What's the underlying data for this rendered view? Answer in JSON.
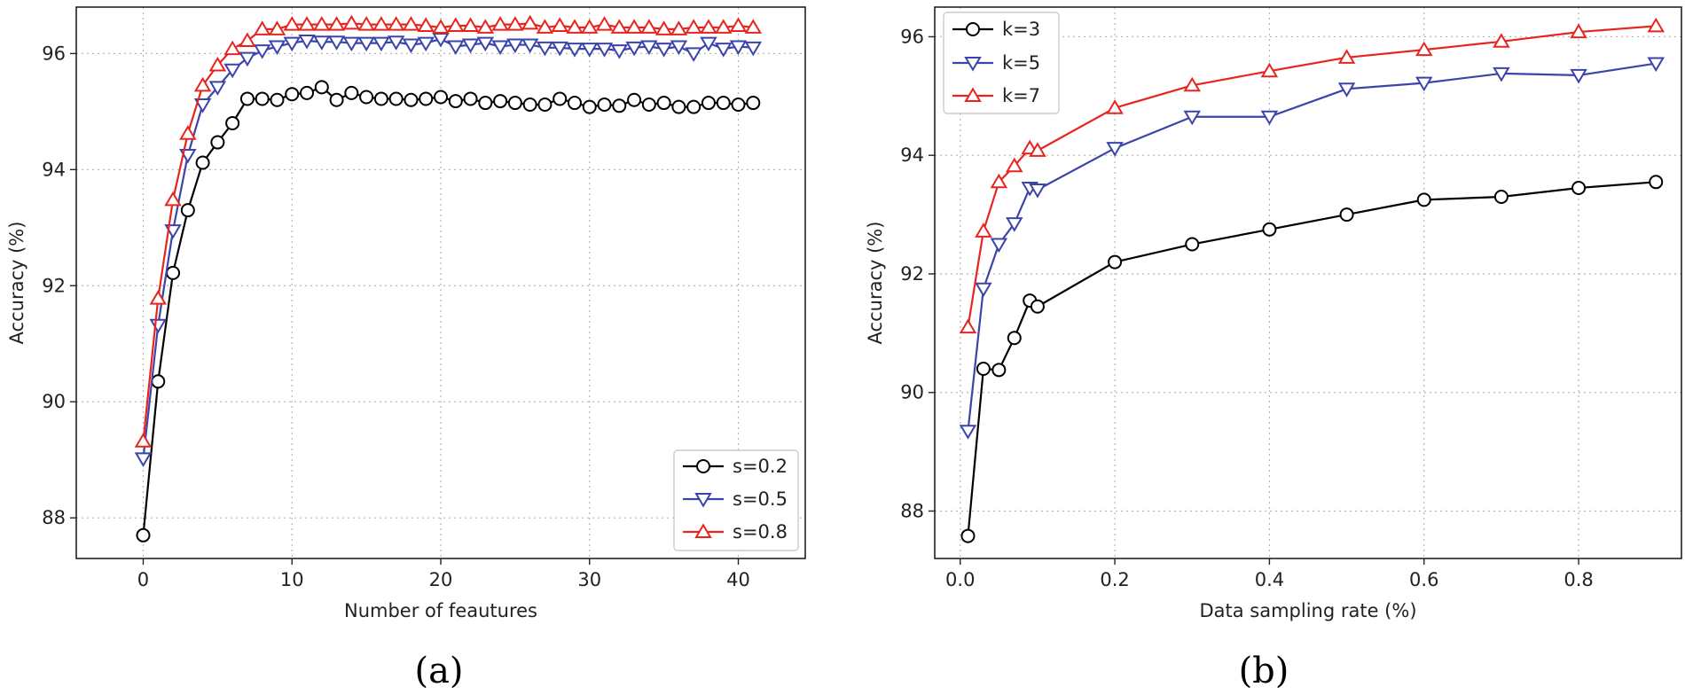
{
  "figure_labels": [
    "(a)",
    "(b)"
  ],
  "chart_data": [
    {
      "type": "line",
      "id": "a",
      "caption": "(a)",
      "xlabel": "Number of feautures",
      "ylabel": "Accuracy (%)",
      "xlim": [
        -4.5,
        44.5
      ],
      "ylim": [
        87.3,
        96.8
      ],
      "xticks": [
        0,
        10,
        20,
        30,
        40
      ],
      "xtick_labels": [
        "0",
        "10",
        "20",
        "30",
        "40"
      ],
      "yticks": [
        88,
        90,
        92,
        94,
        96
      ],
      "ytick_labels": [
        "88",
        "90",
        "92",
        "94",
        "96"
      ],
      "grid": true,
      "legend_position": "bottom-right",
      "x": [
        0,
        1,
        2,
        3,
        4,
        5,
        6,
        7,
        8,
        9,
        10,
        11,
        12,
        13,
        14,
        15,
        16,
        17,
        18,
        19,
        20,
        21,
        22,
        23,
        24,
        25,
        26,
        27,
        28,
        29,
        30,
        31,
        32,
        33,
        34,
        35,
        36,
        37,
        38,
        39,
        40,
        41
      ],
      "series": [
        {
          "name": "s=0.2",
          "color": "#000000",
          "marker": "circle",
          "values": [
            87.7,
            90.35,
            92.22,
            93.3,
            94.12,
            94.47,
            94.8,
            95.22,
            95.22,
            95.2,
            95.3,
            95.32,
            95.42,
            95.2,
            95.32,
            95.25,
            95.22,
            95.22,
            95.2,
            95.22,
            95.25,
            95.18,
            95.22,
            95.15,
            95.18,
            95.15,
            95.12,
            95.12,
            95.22,
            95.15,
            95.08,
            95.12,
            95.1,
            95.2,
            95.12,
            95.15,
            95.08,
            95.08,
            95.15,
            95.15,
            95.12,
            95.15
          ]
        },
        {
          "name": "s=0.5",
          "color": "#3b44a8",
          "marker": "triangle-down",
          "values": [
            89.02,
            91.32,
            92.95,
            94.25,
            95.12,
            95.42,
            95.72,
            95.92,
            96.05,
            96.12,
            96.18,
            96.22,
            96.2,
            96.2,
            96.18,
            96.18,
            96.18,
            96.2,
            96.15,
            96.18,
            96.25,
            96.12,
            96.15,
            96.18,
            96.12,
            96.15,
            96.15,
            96.1,
            96.1,
            96.08,
            96.08,
            96.08,
            96.05,
            96.1,
            96.12,
            96.08,
            96.12,
            96.0,
            96.18,
            96.08,
            96.12,
            96.1
          ]
        },
        {
          "name": "s=0.8",
          "color": "#e8241e",
          "marker": "triangle-up",
          "values": [
            89.32,
            91.78,
            93.48,
            94.62,
            95.45,
            95.8,
            96.08,
            96.22,
            96.42,
            96.42,
            96.5,
            96.5,
            96.5,
            96.5,
            96.52,
            96.5,
            96.5,
            96.5,
            96.5,
            96.48,
            96.45,
            96.48,
            96.48,
            96.45,
            96.5,
            96.5,
            96.52,
            96.45,
            96.48,
            96.45,
            96.45,
            96.5,
            96.45,
            96.45,
            96.45,
            96.42,
            96.42,
            96.45,
            96.45,
            96.45,
            96.48,
            96.45
          ]
        }
      ]
    },
    {
      "type": "line",
      "id": "b",
      "caption": "(b)",
      "xlabel": "Data sampling rate (%)",
      "ylabel": "Accuracy (%)",
      "xlim": [
        -0.033,
        0.933
      ],
      "ylim": [
        87.2,
        96.5
      ],
      "xticks": [
        0.0,
        0.2,
        0.4,
        0.6,
        0.8
      ],
      "xtick_labels": [
        "0.0",
        "0.2",
        "0.4",
        "0.6",
        "0.8"
      ],
      "yticks": [
        88,
        90,
        92,
        94,
        96
      ],
      "ytick_labels": [
        "88",
        "90",
        "92",
        "94",
        "96"
      ],
      "grid": true,
      "legend_position": "top-left",
      "x": [
        0.01,
        0.03,
        0.05,
        0.07,
        0.09,
        0.1,
        0.2,
        0.3,
        0.4,
        0.5,
        0.6,
        0.7,
        0.8,
        0.9
      ],
      "series": [
        {
          "name": "k=3",
          "color": "#000000",
          "marker": "circle",
          "values": [
            87.58,
            90.4,
            90.38,
            90.92,
            91.55,
            91.45,
            92.2,
            92.5,
            92.75,
            93.0,
            93.25,
            93.3,
            93.45,
            93.55
          ]
        },
        {
          "name": "k=5",
          "color": "#3b44a8",
          "marker": "triangle-down",
          "values": [
            89.35,
            91.75,
            92.5,
            92.85,
            93.45,
            93.42,
            94.12,
            94.65,
            94.65,
            95.12,
            95.22,
            95.38,
            95.35,
            95.55
          ]
        },
        {
          "name": "k=7",
          "color": "#e8241e",
          "marker": "triangle-up",
          "values": [
            91.1,
            92.72,
            93.55,
            93.82,
            94.12,
            94.08,
            94.8,
            95.18,
            95.42,
            95.65,
            95.78,
            95.92,
            96.08,
            96.18
          ]
        }
      ]
    }
  ]
}
